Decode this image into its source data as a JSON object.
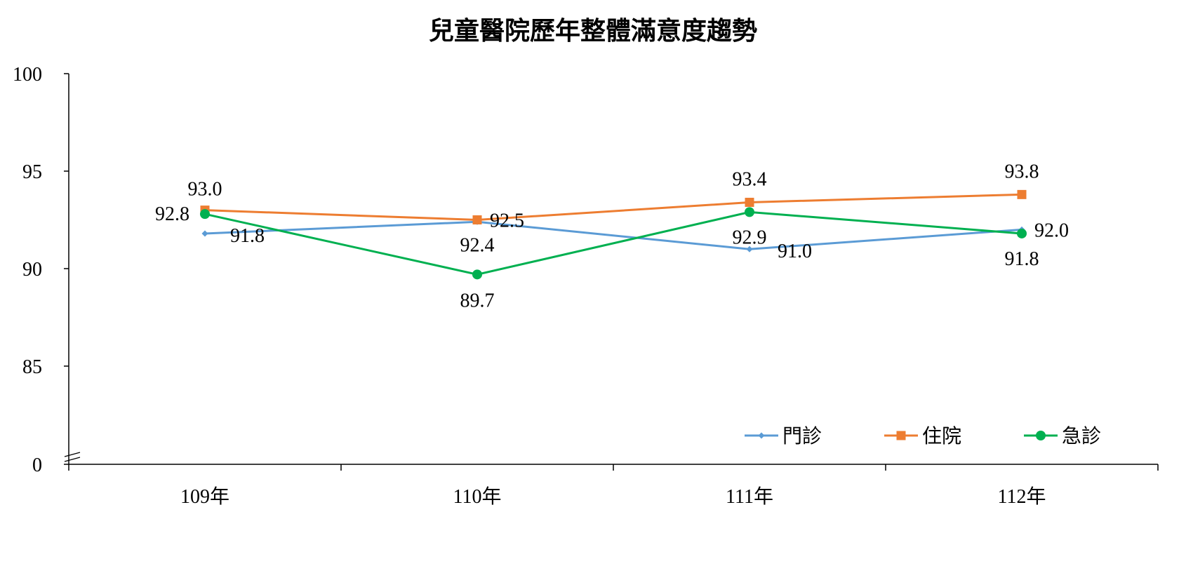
{
  "chart_data": {
    "type": "line",
    "title": "兒童醫院歷年整體滿意度趨勢",
    "xlabel": "",
    "ylabel": "",
    "categories": [
      "109年",
      "110年",
      "111年",
      "112年"
    ],
    "y_ticks": [
      "100",
      "95",
      "90",
      "85",
      "0"
    ],
    "y_axis_break": true,
    "grid": false,
    "legend_position": "bottom-right",
    "series": [
      {
        "name": "門診",
        "color": "#5B9BD5",
        "marker": "diamond",
        "values": [
          91.8,
          92.4,
          91.0,
          92.0
        ],
        "labels": [
          "91.8",
          "92.4",
          "91.0",
          "92.0"
        ]
      },
      {
        "name": "住院",
        "color": "#ED7D31",
        "marker": "square",
        "values": [
          93.0,
          92.5,
          93.4,
          93.8
        ],
        "labels": [
          "93.0",
          "92.5",
          "93.4",
          "93.8"
        ]
      },
      {
        "name": "急診",
        "color": "#00B050",
        "marker": "circle",
        "values": [
          92.8,
          89.7,
          92.9,
          91.8
        ],
        "labels": [
          "92.8",
          "89.7",
          "92.9",
          "91.8"
        ]
      }
    ]
  }
}
